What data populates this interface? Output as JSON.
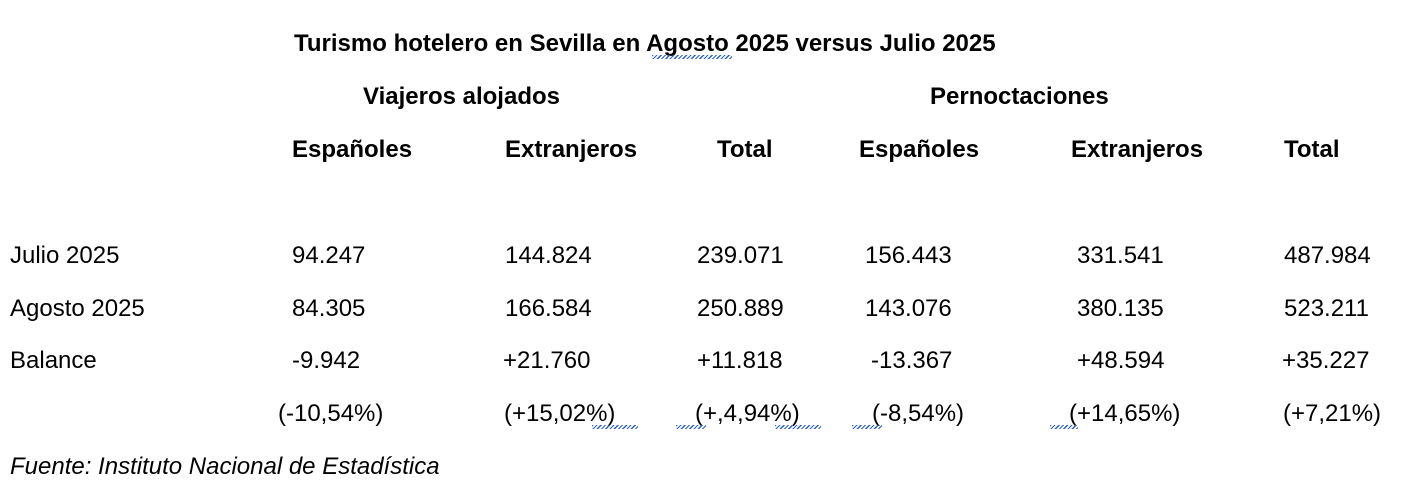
{
  "document": {
    "title": "Turismo hotelero en Sevilla en Agosto 2025 versus Julio 2025",
    "group_headers": [
      "Viajeros alojados",
      "Pernoctaciones"
    ],
    "column_headers": [
      "Españoles",
      "Extranjeros",
      "Total",
      "Españoles",
      "Extranjeros",
      "Total"
    ],
    "rows": [
      {
        "label": "Julio 2025",
        "cells": [
          "94.247",
          "144.824",
          "239.071",
          "156.443",
          "331.541",
          "487.984"
        ]
      },
      {
        "label": "Agosto 2025",
        "cells": [
          "84.305",
          "166.584",
          "250.889",
          "143.076",
          "380.135",
          "523.211"
        ]
      },
      {
        "label": "Balance",
        "cells": [
          "-9.942",
          "+21.760",
          "+11.818",
          "-13.367",
          "+48.594",
          "+35.227"
        ]
      },
      {
        "label": "",
        "cells": [
          "(-10,54%)",
          "(+15,02%)",
          "(+,4,94%)",
          "(-8,54%)",
          "(+14,65%)",
          "(+7,21%)"
        ]
      }
    ],
    "source": "Fuente: Instituto Nacional de Estadística",
    "spellcheck_color": "#2b63c6"
  }
}
